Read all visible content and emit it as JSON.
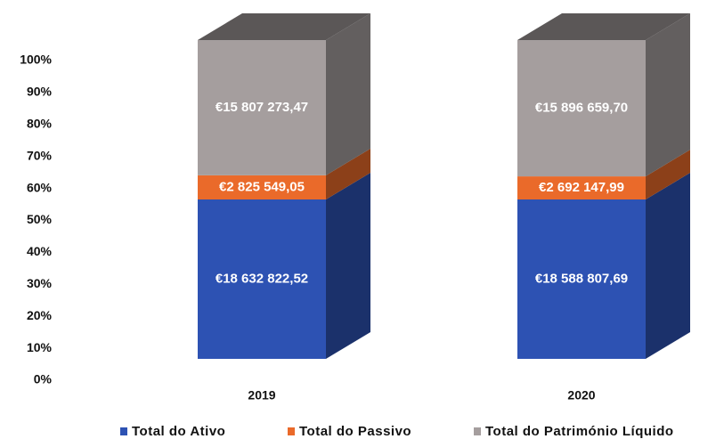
{
  "chart_data": {
    "type": "bar3d_percent_stacked",
    "categories": [
      "2019",
      "2020"
    ],
    "series": [
      {
        "name": "Total do Ativo",
        "color": "#2d52b3",
        "values": [
          18632822.52,
          18588807.69
        ],
        "value_labels": [
          "€18 632 822,52",
          "€18 588 807,69"
        ]
      },
      {
        "name": "Total do Passivo",
        "color": "#ea6a2a",
        "values": [
          2825549.05,
          2692147.99
        ],
        "value_labels": [
          "€2 825 549,05",
          "€2 692 147,99"
        ]
      },
      {
        "name": "Total do Património Líquido",
        "color": "#a59e9e",
        "values": [
          15807273.47,
          15896659.7
        ],
        "value_labels": [
          "€15 807 273,47",
          "€15 896 659,70"
        ]
      }
    ],
    "ylim": [
      0,
      100
    ],
    "yticks": [
      {
        "value": 0,
        "label": "0%"
      },
      {
        "value": 10,
        "label": "10%"
      },
      {
        "value": 20,
        "label": "20%"
      },
      {
        "value": 30,
        "label": "30%"
      },
      {
        "value": 40,
        "label": "40%"
      },
      {
        "value": 50,
        "label": "50%"
      },
      {
        "value": 60,
        "label": "60%"
      },
      {
        "value": 70,
        "label": "70%"
      },
      {
        "value": 80,
        "label": "80%"
      },
      {
        "value": 90,
        "label": "90%"
      },
      {
        "value": 100,
        "label": "100%"
      }
    ],
    "legend": "bottom"
  }
}
